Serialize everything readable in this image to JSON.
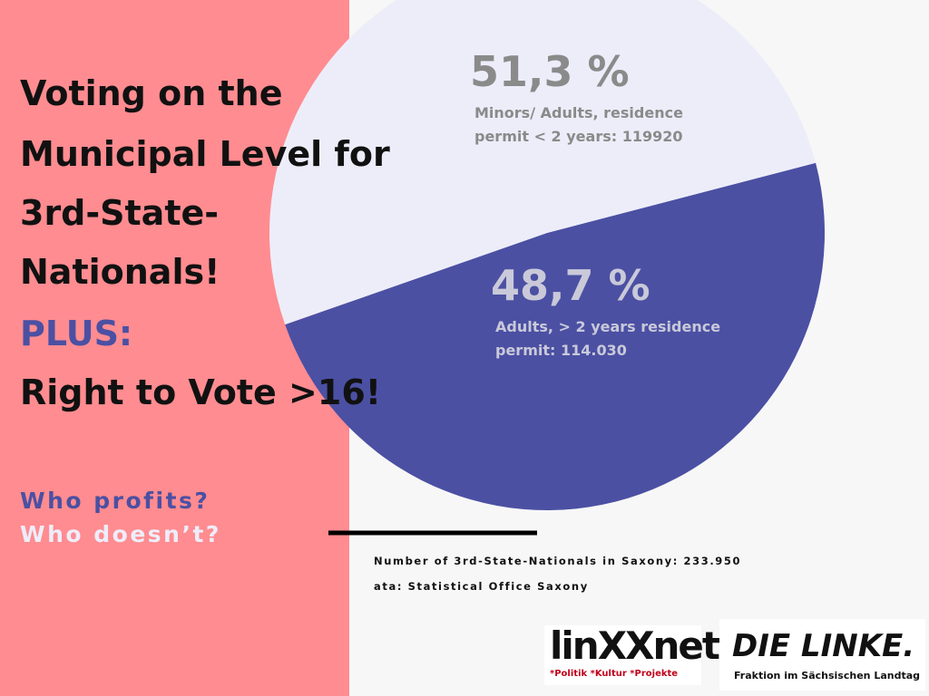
{
  "chart_data": {
    "type": "pie",
    "categories": [
      "Minors/ Adults, residence permit < 2 years: 119920",
      "Adults, > 2 years residence permit: 114.030"
    ],
    "values": [
      51.3,
      48.7
    ],
    "value_labels": [
      "51,3 %",
      "48,7 %"
    ],
    "colors": [
      "#ededfa",
      "#4b50a3"
    ]
  },
  "headline": {
    "lines": [
      "Voting on the",
      "Municipal Level for",
      "3rd-State-",
      "Nationals!"
    ],
    "plus": "PLUS:",
    "claim": "Right to Vote >16!"
  },
  "questions": [
    "Who profits?",
    "Who doesn’t?"
  ],
  "footnotes": [
    "Number of 3rd-State-Nationals in Saxony: 233.950",
    "ata: Statistical Office Saxony"
  ],
  "logos": {
    "linxxnet": "linXXnet",
    "linxxnet_tagline": "*Politik *Kultur *Projekte",
    "linke": "DIE LINKE.",
    "linke_tagline": "Fraktion im Sächsischen Landtag"
  }
}
